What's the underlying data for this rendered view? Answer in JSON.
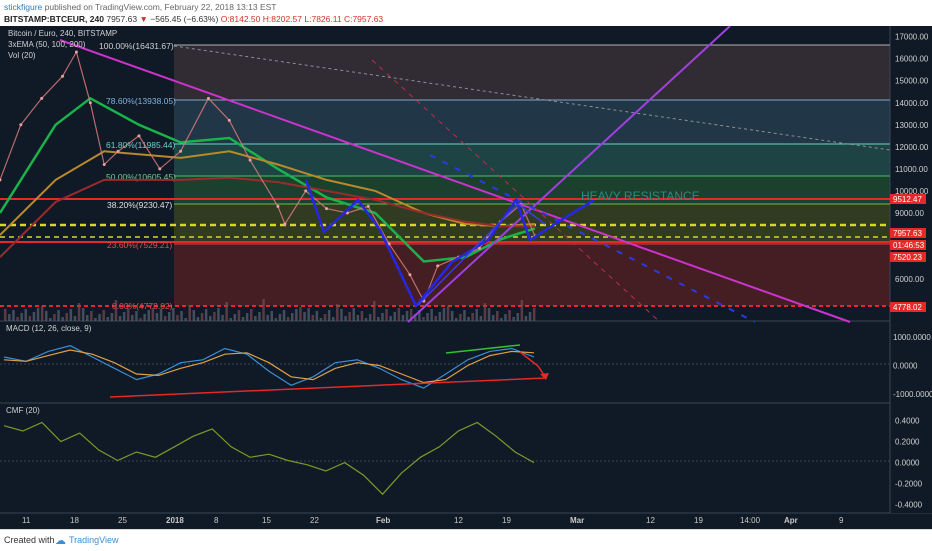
{
  "header": {
    "author": "stickfigure",
    "published": "published on TradingView.com, February 22, 2018 13:13 EST",
    "symbol": "BITSTAMP:BTCEUR, 240",
    "last": "7957.63",
    "change": "−565.45 (−6.63%)",
    "open": "O:8142.50",
    "high": "H:8202.57",
    "low": "L:7826.11",
    "close": "C:7957.63"
  },
  "legend": {
    "title": "Bitcoin / Euro, 240, BITSTAMP",
    "ema": "3xEMA (50, 100, 200)",
    "vol": "Vol (20)",
    "macd": "MACD (12, 26, close, 9)",
    "cmf": "CMF (20)"
  },
  "colors": {
    "background": "#101a26",
    "ema50": "#19b34b",
    "ema100": "#b88a2a",
    "ema200": "#9a2b2b",
    "trend": "#cc33cc",
    "pattern": "#2626e6",
    "resistance": "#e62828",
    "support": "#d8d82a"
  },
  "annotations": {
    "heavy_resistance": "HEAVY RESISTANCE"
  },
  "fib_labels": [
    "100.00%(16431.67)",
    "78.60%(13938.05)",
    "61.80%(11985.44)",
    "50.00%(10605.45)",
    "38.20%(9230.47)",
    "23.60%(7529.21)",
    "0.00%(4778.02)"
  ],
  "price_tags": [
    "9512.47",
    "7957.63",
    "01:46:53",
    "7520.23",
    "4778.02"
  ],
  "watermark": {
    "created_with": "Created with",
    "brand": "TradingView"
  },
  "chart_data": [
    {
      "type": "line",
      "title": "Bitcoin / Euro, 240, BITSTAMP",
      "x_ticks": [
        "11",
        "18",
        "25",
        "2018",
        "8",
        "15",
        "22",
        "Feb",
        "12",
        "19",
        "Mar",
        "12",
        "19",
        "14:00",
        "Apr",
        "9"
      ],
      "y_ticks": [
        17000,
        16000,
        15000,
        14000,
        13000,
        12000,
        11000,
        10000,
        9000,
        6000
      ],
      "ylim": [
        4100,
        17300
      ],
      "series": [
        {
          "name": "BTCEUR",
          "x": [
            "Dec 7",
            "Dec 10",
            "Dec 13",
            "Dec 16",
            "Dec 18",
            "Dec 20",
            "Dec 22",
            "Dec 24",
            "Dec 27",
            "Dec 30",
            "Jan 2",
            "Jan 6",
            "Jan 9",
            "Jan 12",
            "Jan 16",
            "Jan 17",
            "Jan 20",
            "Jan 23",
            "Jan 26",
            "Jan 29",
            "Feb 1",
            "Feb 4",
            "Feb 6",
            "Feb 8",
            "Feb 11",
            "Feb 14",
            "Feb 17",
            "Feb 20",
            "Feb 22"
          ],
          "values": [
            10500,
            13000,
            14200,
            15200,
            16300,
            14000,
            11200,
            11800,
            12500,
            11000,
            11800,
            14200,
            13200,
            11400,
            9300,
            8500,
            10000,
            9200,
            9000,
            9300,
            7600,
            6200,
            5000,
            6600,
            7000,
            7400,
            8600,
            9400,
            7957.63
          ]
        },
        {
          "name": "EMA 50",
          "x": [
            "Dec 7",
            "Dec 15",
            "Dec 20",
            "Dec 27",
            "Jan 2",
            "Jan 9",
            "Jan 16",
            "Jan 23",
            "Jan 30",
            "Feb 6",
            "Feb 12",
            "Feb 17",
            "Feb 22"
          ],
          "values": [
            9000,
            13000,
            14200,
            13000,
            12200,
            12400,
            11000,
            9700,
            9000,
            6800,
            7000,
            7800,
            8300
          ]
        },
        {
          "name": "EMA 100",
          "x": [
            "Dec 7",
            "Dec 15",
            "Dec 22",
            "Jan 2",
            "Jan 9",
            "Jan 16",
            "Jan 23",
            "Jan 30",
            "Feb 6",
            "Feb 12",
            "Feb 17",
            "Feb 22"
          ],
          "values": [
            8000,
            10500,
            11800,
            11500,
            11800,
            11200,
            10500,
            10000,
            9000,
            8500,
            8400,
            8500
          ]
        },
        {
          "name": "EMA 200",
          "x": [
            "Dec 7",
            "Dec 15",
            "Dec 22",
            "Jan 2",
            "Jan 9",
            "Jan 16",
            "Jan 23",
            "Jan 30",
            "Feb 6",
            "Feb 12",
            "Feb 17",
            "Feb 22"
          ],
          "values": [
            7000,
            9500,
            10500,
            10500,
            10600,
            10400,
            10000,
            9600,
            9000,
            8600,
            8400,
            8400
          ]
        }
      ],
      "levels": [
        16431.67,
        13938.05,
        11985.44,
        10605.45,
        9230.47,
        7529.21,
        4778.02
      ],
      "resistance": 9512.47,
      "current": 7957.63,
      "support": 7520.23
    },
    {
      "type": "line",
      "title": "MACD (12, 26, close, 9)",
      "y_ticks": [
        1000,
        0,
        -1000
      ],
      "ylim": [
        -1150,
        1150
      ],
      "series": [
        {
          "name": "MACD",
          "values": [
            300,
            150,
            500,
            700,
            300,
            -100,
            -500,
            -300,
            100,
            200,
            600,
            400,
            -200,
            -700,
            -400,
            100,
            200,
            -100,
            -500,
            -800,
            -300,
            200,
            500,
            600,
            300
          ]
        },
        {
          "name": "Signal",
          "values": [
            200,
            150,
            350,
            550,
            400,
            100,
            -300,
            -350,
            -100,
            100,
            400,
            450,
            100,
            -400,
            -500,
            -100,
            100,
            0,
            -300,
            -600,
            -500,
            0,
            350,
            500,
            450
          ]
        }
      ]
    },
    {
      "type": "line",
      "title": "CMF (20)",
      "y_ticks": [
        0.4,
        0.2,
        0.0,
        -0.2,
        -0.4
      ],
      "ylim": [
        -0.45,
        0.48
      ],
      "series": [
        {
          "name": "CMF",
          "values": [
            0.35,
            0.3,
            0.38,
            0.2,
            0.28,
            0.12,
            0.02,
            0.1,
            0.05,
            0.15,
            0.25,
            0.32,
            0.15,
            0.05,
            0.08,
            0.02,
            -0.02,
            -0.08,
            0.0,
            -0.12,
            -0.3,
            -0.1,
            0.05,
            0.15,
            0.3,
            0.38,
            0.25,
            0.1,
            0.0
          ]
        }
      ]
    }
  ]
}
